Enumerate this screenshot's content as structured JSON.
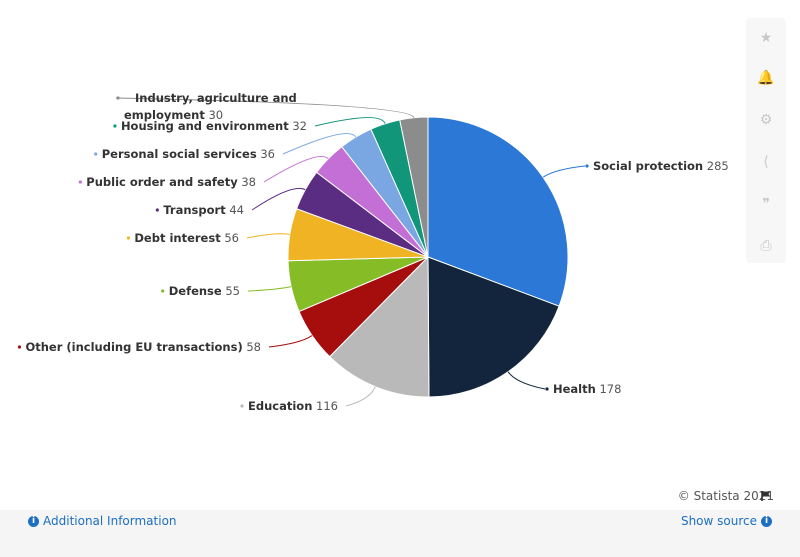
{
  "chart_data": {
    "type": "pie",
    "categories": [
      "Social protection",
      "Health",
      "Education",
      "Other (including EU transactions)",
      "Defense",
      "Debt interest",
      "Transport",
      "Public order and safety",
      "Personal social services",
      "Housing and environment",
      "Industry, agriculture and employment"
    ],
    "values": [
      285,
      178,
      116,
      58,
      55,
      56,
      44,
      38,
      36,
      32,
      30
    ],
    "colors": [
      "#2c78d6",
      "#13253c",
      "#b9b9b9",
      "#a60e0e",
      "#86bc25",
      "#f0b323",
      "#5b2d82",
      "#c46fd6",
      "#7aa7e1",
      "#11967a",
      "#8c8c8c"
    ],
    "title": "",
    "legend": "none",
    "label_layout": {
      "Social protection": "right",
      "Health": "right",
      "Education": "left",
      "Other (including EU transactions)": "left",
      "Defense": "left",
      "Debt interest": "left",
      "Transport": "left",
      "Public order and safety": "left",
      "Personal social services": "left",
      "Housing and environment": "left",
      "Industry, agriculture and employment": "left"
    }
  },
  "toolbar": {
    "icons": [
      "star-icon",
      "bell-icon",
      "gear-icon",
      "share-icon",
      "quote-icon",
      "print-icon"
    ]
  },
  "credit": "© Statista 2021",
  "footer": {
    "additional_info": "Additional Information",
    "show_source": "Show source"
  }
}
